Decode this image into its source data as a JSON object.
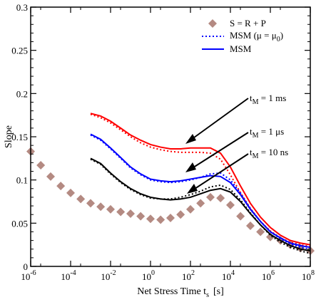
{
  "chart_data": {
    "type": "scatter",
    "title": "",
    "xlabel": "Net Stress Time  t",
    "xlabel_sub": "s",
    "xlabel_unit": "[s]",
    "ylabel": "Slope",
    "xscale": "log",
    "xlim": [
      1e-06,
      100000000.0
    ],
    "ylim": [
      0,
      0.3
    ],
    "x_tick_exponents": [
      -6,
      -4,
      -2,
      0,
      2,
      4,
      6,
      8
    ],
    "x_tick_base": "10",
    "y_ticks": [
      "0",
      "0.05",
      "0.1",
      "0.15",
      "0.2",
      "0.25",
      "0.3"
    ],
    "y_tick_values": [
      0,
      0.05,
      0.1,
      0.15,
      0.2,
      0.25,
      0.3
    ],
    "legend": {
      "position": "top-right",
      "entries": [
        {
          "label": "S = R + P",
          "style": "diamond",
          "color": "#b48a82"
        },
        {
          "label_main": "MSM (μ = μ",
          "label_sub": "0",
          "label_end": ")",
          "style": "dotted",
          "color": "#0000ff"
        },
        {
          "label": "MSM",
          "style": "solid",
          "color": "#0000ff"
        }
      ]
    },
    "annotations": [
      {
        "label_pre": "t",
        "label_sub": "M",
        "label_post": " = 1 ms",
        "color": "#000000"
      },
      {
        "label_pre": "t",
        "label_sub": "M",
        "label_post": " = 1 μs",
        "color": "#000000"
      },
      {
        "label_pre": "t",
        "label_sub": "M",
        "label_post": " = 10 ns",
        "color": "#000000"
      }
    ],
    "series": [
      {
        "group": "S = R + P",
        "style": "diamond",
        "color": "#b48a82",
        "x": [
          1e-06,
          3.2e-06,
          1e-05,
          3.2e-05,
          0.0001,
          0.00032,
          0.001,
          0.0032,
          0.01,
          0.032,
          0.1,
          0.32,
          1,
          3.2,
          10,
          32,
          100,
          320,
          1000,
          3200,
          10000,
          32000,
          100000,
          320000,
          1000000,
          3200000,
          10000000,
          32000000,
          100000000
        ],
        "y": [
          0.133,
          0.117,
          0.104,
          0.093,
          0.085,
          0.078,
          0.073,
          0.069,
          0.066,
          0.063,
          0.061,
          0.058,
          0.055,
          0.054,
          0.056,
          0.06,
          0.066,
          0.073,
          0.08,
          0.079,
          0.071,
          0.058,
          0.047,
          0.04,
          0.034,
          0.03,
          0.025,
          0.021,
          0.018
        ]
      },
      {
        "group": "tM = 1 ms",
        "style": "solid",
        "color": "#ff0000",
        "x": [
          0.001,
          0.0032,
          0.01,
          0.032,
          0.1,
          0.32,
          1,
          3.2,
          10,
          32,
          100,
          320,
          1000,
          3200,
          10000,
          32000,
          100000,
          320000,
          1000000,
          3200000,
          10000000,
          32000000,
          100000000
        ],
        "y": [
          0.177,
          0.174,
          0.168,
          0.16,
          0.152,
          0.146,
          0.141,
          0.138,
          0.136,
          0.136,
          0.137,
          0.137,
          0.137,
          0.131,
          0.115,
          0.093,
          0.073,
          0.057,
          0.045,
          0.036,
          0.03,
          0.027,
          0.025
        ]
      },
      {
        "group": "tM = 1 ms",
        "style": "dotted",
        "color": "#ff0000",
        "x": [
          0.001,
          0.0032,
          0.01,
          0.032,
          0.1,
          0.32,
          1,
          3.2,
          10,
          32,
          100,
          320,
          1000,
          3200,
          10000,
          32000,
          100000,
          320000,
          1000000,
          3200000,
          10000000,
          32000000,
          100000000
        ],
        "y": [
          0.176,
          0.172,
          0.166,
          0.158,
          0.15,
          0.143,
          0.138,
          0.135,
          0.133,
          0.132,
          0.132,
          0.132,
          0.131,
          0.124,
          0.106,
          0.085,
          0.067,
          0.052,
          0.041,
          0.033,
          0.028,
          0.025,
          0.023
        ]
      },
      {
        "group": "tM = 1 μs",
        "style": "solid",
        "color": "#0000ff",
        "x": [
          0.001,
          0.0032,
          0.01,
          0.032,
          0.1,
          0.32,
          1,
          3.2,
          10,
          32,
          100,
          320,
          1000,
          3200,
          10000,
          32000,
          100000,
          320000,
          1000000,
          3200000,
          10000000,
          32000000,
          100000000
        ],
        "y": [
          0.153,
          0.147,
          0.137,
          0.126,
          0.115,
          0.107,
          0.101,
          0.099,
          0.098,
          0.099,
          0.101,
          0.103,
          0.105,
          0.104,
          0.097,
          0.083,
          0.066,
          0.052,
          0.04,
          0.033,
          0.027,
          0.024,
          0.022
        ]
      },
      {
        "group": "tM = 1 μs",
        "style": "dotted",
        "color": "#0000ff",
        "x": [
          0.001,
          0.0032,
          0.01,
          0.032,
          0.1,
          0.32,
          1,
          3.2,
          10,
          32,
          100,
          320,
          1000,
          3200,
          10000,
          32000,
          100000,
          320000,
          1000000,
          3200000,
          10000000,
          32000000,
          100000000
        ],
        "y": [
          0.152,
          0.146,
          0.136,
          0.125,
          0.114,
          0.106,
          0.1,
          0.098,
          0.097,
          0.098,
          0.1,
          0.103,
          0.107,
          0.108,
          0.1,
          0.085,
          0.067,
          0.052,
          0.04,
          0.032,
          0.026,
          0.022,
          0.02
        ]
      },
      {
        "group": "tM = 10 ns",
        "style": "solid",
        "color": "#000000",
        "x": [
          0.001,
          0.0032,
          0.01,
          0.032,
          0.1,
          0.32,
          1,
          3.2,
          10,
          32,
          100,
          320,
          1000,
          3200,
          10000,
          32000,
          100000,
          320000,
          1000000,
          3200000,
          10000000,
          32000000,
          100000000
        ],
        "y": [
          0.125,
          0.119,
          0.108,
          0.098,
          0.09,
          0.084,
          0.08,
          0.078,
          0.077,
          0.078,
          0.08,
          0.084,
          0.088,
          0.09,
          0.086,
          0.075,
          0.061,
          0.048,
          0.037,
          0.03,
          0.024,
          0.02,
          0.018
        ]
      },
      {
        "group": "tM = 10 ns",
        "style": "dotted",
        "color": "#000000",
        "x": [
          0.001,
          0.0032,
          0.01,
          0.032,
          0.1,
          0.32,
          1,
          3.2,
          10,
          32,
          100,
          320,
          1000,
          3200,
          10000,
          32000,
          100000,
          320000,
          1000000,
          3200000,
          10000000,
          32000000,
          100000000
        ],
        "y": [
          0.124,
          0.118,
          0.107,
          0.097,
          0.089,
          0.083,
          0.079,
          0.078,
          0.078,
          0.08,
          0.083,
          0.087,
          0.092,
          0.094,
          0.089,
          0.077,
          0.062,
          0.048,
          0.036,
          0.028,
          0.022,
          0.018,
          0.015
        ]
      }
    ]
  }
}
